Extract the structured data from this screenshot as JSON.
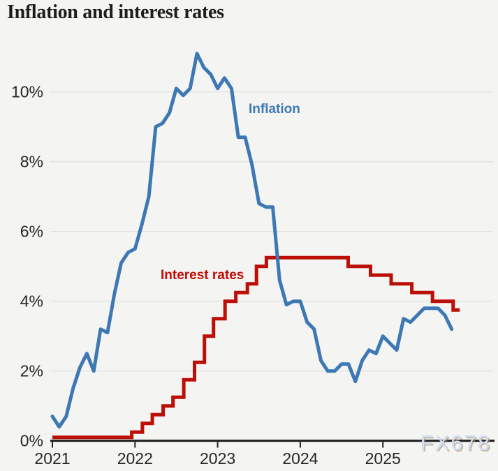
{
  "page": {
    "title": "Inflation and interest rates"
  },
  "watermark": {
    "text": "FX678"
  },
  "chart_data": {
    "type": "line",
    "title": "Inflation and interest rates",
    "xlabel": "",
    "ylabel": "",
    "unit": "%",
    "xlim": [
      2021,
      2026.39
    ],
    "ylim": [
      0,
      11.5
    ],
    "grid": "horizontal",
    "legend_position": "inline-labels",
    "y_gridlines": [
      2,
      4,
      6,
      8,
      10
    ],
    "y_ticks": [
      {
        "value": 0,
        "label": "0%"
      },
      {
        "value": 2,
        "label": "2%"
      },
      {
        "value": 4,
        "label": "4%"
      },
      {
        "value": 6,
        "label": "6%"
      },
      {
        "value": 8,
        "label": "8%"
      },
      {
        "value": 10,
        "label": "10%"
      }
    ],
    "x_ticks": [
      {
        "value": 2021,
        "label": "2021"
      },
      {
        "value": 2022,
        "label": "2022"
      },
      {
        "value": 2023,
        "label": "2023"
      },
      {
        "value": 2024,
        "label": "2024"
      },
      {
        "value": 2025,
        "label": "2025"
      }
    ],
    "series": [
      {
        "name": "Inflation",
        "color": "#3d78b4",
        "style": "line",
        "points": [
          [
            2021.0,
            0.7
          ],
          [
            2021.083,
            0.4
          ],
          [
            2021.167,
            0.7
          ],
          [
            2021.25,
            1.5
          ],
          [
            2021.333,
            2.1
          ],
          [
            2021.417,
            2.5
          ],
          [
            2021.5,
            2.0
          ],
          [
            2021.583,
            3.2
          ],
          [
            2021.667,
            3.1
          ],
          [
            2021.75,
            4.2
          ],
          [
            2021.833,
            5.1
          ],
          [
            2021.917,
            5.4
          ],
          [
            2022.0,
            5.5
          ],
          [
            2022.083,
            6.2
          ],
          [
            2022.167,
            7.0
          ],
          [
            2022.25,
            9.0
          ],
          [
            2022.333,
            9.1
          ],
          [
            2022.417,
            9.4
          ],
          [
            2022.5,
            10.1
          ],
          [
            2022.583,
            9.9
          ],
          [
            2022.667,
            10.1
          ],
          [
            2022.75,
            11.1
          ],
          [
            2022.833,
            10.7
          ],
          [
            2022.917,
            10.5
          ],
          [
            2023.0,
            10.1
          ],
          [
            2023.083,
            10.4
          ],
          [
            2023.167,
            10.1
          ],
          [
            2023.25,
            8.7
          ],
          [
            2023.333,
            8.7
          ],
          [
            2023.417,
            7.9
          ],
          [
            2023.5,
            6.8
          ],
          [
            2023.583,
            6.7
          ],
          [
            2023.667,
            6.7
          ],
          [
            2023.75,
            4.6
          ],
          [
            2023.833,
            3.9
          ],
          [
            2023.917,
            4.0
          ],
          [
            2024.0,
            4.0
          ],
          [
            2024.083,
            3.4
          ],
          [
            2024.167,
            3.2
          ],
          [
            2024.25,
            2.3
          ],
          [
            2024.333,
            2.0
          ],
          [
            2024.417,
            2.0
          ],
          [
            2024.5,
            2.2
          ],
          [
            2024.583,
            2.2
          ],
          [
            2024.667,
            1.7
          ],
          [
            2024.75,
            2.3
          ],
          [
            2024.833,
            2.6
          ],
          [
            2024.917,
            2.5
          ],
          [
            2025.0,
            3.0
          ],
          [
            2025.083,
            2.8
          ],
          [
            2025.167,
            2.6
          ],
          [
            2025.25,
            3.5
          ],
          [
            2025.333,
            3.4
          ],
          [
            2025.417,
            3.6
          ],
          [
            2025.5,
            3.8
          ],
          [
            2025.583,
            3.8
          ],
          [
            2025.667,
            3.8
          ],
          [
            2025.75,
            3.6
          ],
          [
            2025.833,
            3.2
          ]
        ]
      },
      {
        "name": "Interest rates",
        "color": "#bb0f07",
        "style": "step",
        "end_t": 2025.93,
        "points": [
          [
            2021.0,
            0.1
          ],
          [
            2021.96,
            0.25
          ],
          [
            2022.09,
            0.5
          ],
          [
            2022.21,
            0.75
          ],
          [
            2022.34,
            1.0
          ],
          [
            2022.46,
            1.25
          ],
          [
            2022.59,
            1.75
          ],
          [
            2022.72,
            2.25
          ],
          [
            2022.84,
            3.0
          ],
          [
            2022.95,
            3.5
          ],
          [
            2023.09,
            4.0
          ],
          [
            2023.22,
            4.25
          ],
          [
            2023.36,
            4.5
          ],
          [
            2023.47,
            5.0
          ],
          [
            2023.59,
            5.25
          ],
          [
            2024.58,
            5.0
          ],
          [
            2024.85,
            4.75
          ],
          [
            2025.1,
            4.5
          ],
          [
            2025.35,
            4.25
          ],
          [
            2025.6,
            4.0
          ],
          [
            2025.85,
            3.75
          ]
        ]
      }
    ]
  }
}
